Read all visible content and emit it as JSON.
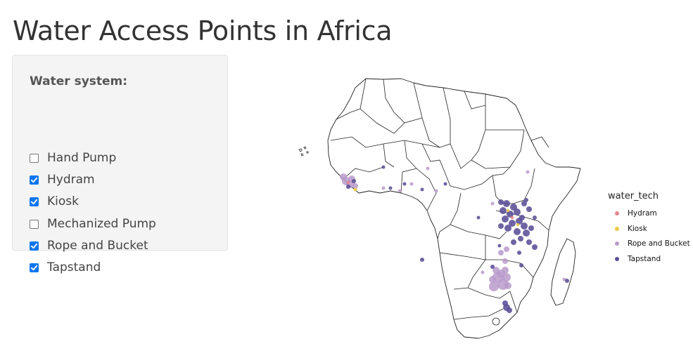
{
  "page": {
    "title": "Water Access Points in Africa"
  },
  "filter": {
    "label": "Water system:",
    "options": [
      {
        "label": "Hand Pump",
        "checked": false
      },
      {
        "label": "Hydram",
        "checked": true
      },
      {
        "label": "Kiosk",
        "checked": true
      },
      {
        "label": "Mechanized Pump",
        "checked": false
      },
      {
        "label": "Rope and Bucket",
        "checked": true
      },
      {
        "label": "Tapstand",
        "checked": true
      }
    ],
    "accent_color": "#0b76ef"
  },
  "legend": {
    "title": "water_tech",
    "items": [
      {
        "label": "Hydram",
        "color": "#e8858f"
      },
      {
        "label": "Kiosk",
        "color": "#e9c94a"
      },
      {
        "label": "Rope and Bucket",
        "color": "#b99bcb"
      },
      {
        "label": "Tapstand",
        "color": "#5a4e96"
      }
    ]
  }
}
